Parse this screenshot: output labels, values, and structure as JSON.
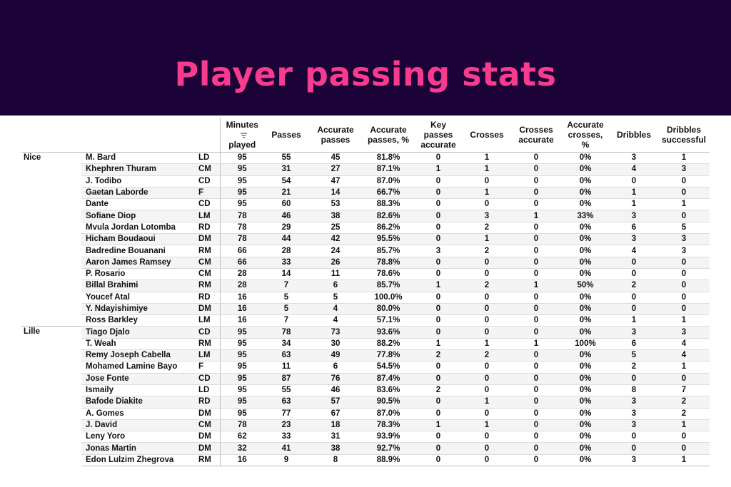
{
  "title": "Player passing stats",
  "columns": [
    "Minutes played",
    "Passes",
    "Accurate passes",
    "Accurate passing, %",
    "Key passes accurate",
    "Crosses",
    "Crosses accurate",
    "Accurate crosses, %",
    "Dribbles",
    "Dribbles successful"
  ],
  "column_lines": [
    [
      "Minutes",
      "played"
    ],
    [
      "Passes"
    ],
    [
      "Accurate",
      "passes"
    ],
    [
      "Accurate",
      "passes, %"
    ],
    [
      "Key",
      "passes",
      "accurate"
    ],
    [
      "Crosses"
    ],
    [
      "Crosses",
      "accurate"
    ],
    [
      "Accurate",
      "crosses,",
      "%"
    ],
    [
      "Dribbles"
    ],
    [
      "Dribbles",
      "successful"
    ]
  ],
  "sort_icon": "sort-descending-icon",
  "teams": [
    {
      "name": "Nice",
      "players": [
        {
          "name": "M. Bard",
          "pos": "LD",
          "stats": [
            "95",
            "55",
            "45",
            "81.8%",
            "0",
            "1",
            "0",
            "0%",
            "3",
            "1"
          ]
        },
        {
          "name": "Khephren Thuram",
          "pos": "CM",
          "stats": [
            "95",
            "31",
            "27",
            "87.1%",
            "1",
            "1",
            "0",
            "0%",
            "4",
            "3"
          ]
        },
        {
          "name": "J. Todibo",
          "pos": "CD",
          "stats": [
            "95",
            "54",
            "47",
            "87.0%",
            "0",
            "0",
            "0",
            "0%",
            "0",
            "0"
          ]
        },
        {
          "name": "Gaetan Laborde",
          "pos": "F",
          "stats": [
            "95",
            "21",
            "14",
            "66.7%",
            "0",
            "1",
            "0",
            "0%",
            "1",
            "0"
          ]
        },
        {
          "name": "Dante",
          "pos": "CD",
          "stats": [
            "95",
            "60",
            "53",
            "88.3%",
            "0",
            "0",
            "0",
            "0%",
            "1",
            "1"
          ]
        },
        {
          "name": "Sofiane Diop",
          "pos": "LM",
          "stats": [
            "78",
            "46",
            "38",
            "82.6%",
            "0",
            "3",
            "1",
            "33%",
            "3",
            "0"
          ]
        },
        {
          "name": "Mvula Jordan Lotomba",
          "pos": "RD",
          "stats": [
            "78",
            "29",
            "25",
            "86.2%",
            "0",
            "2",
            "0",
            "0%",
            "6",
            "5"
          ]
        },
        {
          "name": "Hicham Boudaoui",
          "pos": "DM",
          "stats": [
            "78",
            "44",
            "42",
            "95.5%",
            "0",
            "1",
            "0",
            "0%",
            "3",
            "3"
          ]
        },
        {
          "name": "Badredine Bouanani",
          "pos": "RM",
          "stats": [
            "66",
            "28",
            "24",
            "85.7%",
            "3",
            "2",
            "0",
            "0%",
            "4",
            "3"
          ]
        },
        {
          "name": "Aaron James Ramsey",
          "pos": "CM",
          "stats": [
            "66",
            "33",
            "26",
            "78.8%",
            "0",
            "0",
            "0",
            "0%",
            "0",
            "0"
          ]
        },
        {
          "name": "P. Rosario",
          "pos": "CM",
          "stats": [
            "28",
            "14",
            "11",
            "78.6%",
            "0",
            "0",
            "0",
            "0%",
            "0",
            "0"
          ]
        },
        {
          "name": "Billal Brahimi",
          "pos": "RM",
          "stats": [
            "28",
            "7",
            "6",
            "85.7%",
            "1",
            "2",
            "1",
            "50%",
            "2",
            "0"
          ]
        },
        {
          "name": "Youcef Atal",
          "pos": "RD",
          "stats": [
            "16",
            "5",
            "5",
            "100.0%",
            "0",
            "0",
            "0",
            "0%",
            "0",
            "0"
          ]
        },
        {
          "name": "Y. Ndayishimiye",
          "pos": "DM",
          "stats": [
            "16",
            "5",
            "4",
            "80.0%",
            "0",
            "0",
            "0",
            "0%",
            "0",
            "0"
          ]
        },
        {
          "name": "Ross Barkley",
          "pos": "LM",
          "stats": [
            "16",
            "7",
            "4",
            "57.1%",
            "0",
            "0",
            "0",
            "0%",
            "1",
            "1"
          ]
        }
      ]
    },
    {
      "name": "Lille",
      "players": [
        {
          "name": "Tiago Djalo",
          "pos": "CD",
          "stats": [
            "95",
            "78",
            "73",
            "93.6%",
            "0",
            "0",
            "0",
            "0%",
            "3",
            "3"
          ]
        },
        {
          "name": "T. Weah",
          "pos": "RM",
          "stats": [
            "95",
            "34",
            "30",
            "88.2%",
            "1",
            "1",
            "1",
            "100%",
            "6",
            "4"
          ]
        },
        {
          "name": "Remy Joseph Cabella",
          "pos": "LM",
          "stats": [
            "95",
            "63",
            "49",
            "77.8%",
            "2",
            "2",
            "0",
            "0%",
            "5",
            "4"
          ]
        },
        {
          "name": "Mohamed Lamine Bayo",
          "pos": "F",
          "stats": [
            "95",
            "11",
            "6",
            "54.5%",
            "0",
            "0",
            "0",
            "0%",
            "2",
            "1"
          ]
        },
        {
          "name": "Jose Fonte",
          "pos": "CD",
          "stats": [
            "95",
            "87",
            "76",
            "87.4%",
            "0",
            "0",
            "0",
            "0%",
            "0",
            "0"
          ]
        },
        {
          "name": "Ismaily",
          "pos": "LD",
          "stats": [
            "95",
            "55",
            "46",
            "83.6%",
            "2",
            "0",
            "0",
            "0%",
            "8",
            "7"
          ]
        },
        {
          "name": "Bafode Diakite",
          "pos": "RD",
          "stats": [
            "95",
            "63",
            "57",
            "90.5%",
            "0",
            "1",
            "0",
            "0%",
            "3",
            "2"
          ]
        },
        {
          "name": "A. Gomes",
          "pos": "DM",
          "stats": [
            "95",
            "77",
            "67",
            "87.0%",
            "0",
            "0",
            "0",
            "0%",
            "3",
            "2"
          ]
        },
        {
          "name": "J. David",
          "pos": "CM",
          "stats": [
            "78",
            "23",
            "18",
            "78.3%",
            "1",
            "1",
            "0",
            "0%",
            "3",
            "1"
          ]
        },
        {
          "name": "Leny Yoro",
          "pos": "DM",
          "stats": [
            "62",
            "33",
            "31",
            "93.9%",
            "0",
            "0",
            "0",
            "0%",
            "0",
            "0"
          ]
        },
        {
          "name": "Jonas Martin",
          "pos": "DM",
          "stats": [
            "32",
            "41",
            "38",
            "92.7%",
            "0",
            "0",
            "0",
            "0%",
            "0",
            "0"
          ]
        },
        {
          "name": "Edon Lulzim Zhegrova",
          "pos": "RM",
          "stats": [
            "16",
            "9",
            "8",
            "88.9%",
            "0",
            "0",
            "0",
            "0%",
            "3",
            "1"
          ]
        }
      ]
    }
  ]
}
